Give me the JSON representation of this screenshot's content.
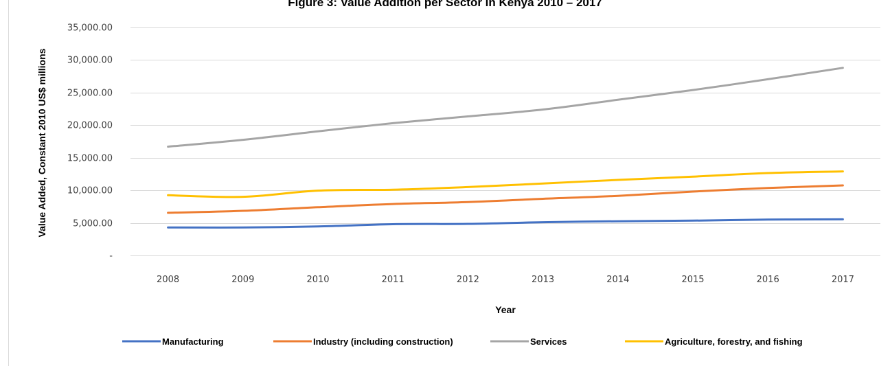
{
  "chart_data": {
    "type": "line",
    "title": "Figure 3: Value Addition per Sector in Kenya 2010 – 2017",
    "xlabel": "Year",
    "ylabel": "Value Added, Constant 2010 US$ millions",
    "x": [
      "2008",
      "2009",
      "2010",
      "2011",
      "2012",
      "2013",
      "2014",
      "2015",
      "2016",
      "2017"
    ],
    "ylim": [
      0,
      35000
    ],
    "yticks": [
      0,
      5000,
      10000,
      15000,
      20000,
      25000,
      30000,
      35000
    ],
    "ytick_labels": [
      "-",
      "5,000.00",
      "10,000.00",
      "15,000.00",
      "20,000.00",
      "25,000.00",
      "30,000.00",
      "35,000.00"
    ],
    "grid": true,
    "legend_position": "bottom",
    "series": [
      {
        "name": "Manufacturing",
        "color": "#4472C4",
        "values": [
          4300,
          4300,
          4450,
          4800,
          4850,
          5100,
          5250,
          5350,
          5500,
          5550
        ]
      },
      {
        "name": "Industry (including construction)",
        "color": "#ED7D31",
        "values": [
          6550,
          6850,
          7400,
          7900,
          8200,
          8700,
          9150,
          9800,
          10350,
          10750
        ]
      },
      {
        "name": "Services",
        "color": "#A5A5A5",
        "values": [
          16700,
          17750,
          19050,
          20300,
          21350,
          22400,
          23900,
          25400,
          27050,
          28800
        ]
      },
      {
        "name": "Agriculture, forestry, and fishing",
        "color": "#FFC000",
        "values": [
          9250,
          9000,
          9950,
          10100,
          10500,
          11050,
          11600,
          12100,
          12650,
          12900
        ]
      }
    ]
  }
}
